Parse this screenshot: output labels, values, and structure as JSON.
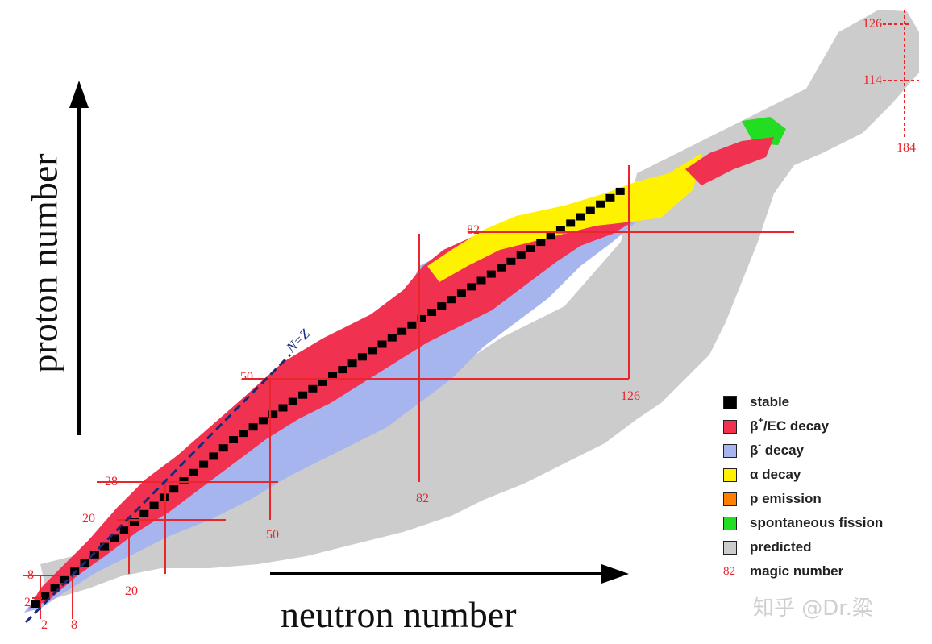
{
  "chart_data": {
    "type": "heatmap",
    "xlabel": "neutron number",
    "ylabel": "proton number",
    "nz_line_label": "N=Z",
    "magic_numbers_protons": [
      2,
      8,
      20,
      28,
      50,
      82,
      114,
      126
    ],
    "magic_numbers_neutrons": [
      2,
      8,
      20,
      28,
      50,
      82,
      126,
      184
    ],
    "magic_labels": {
      "p2": "2",
      "p8": "8",
      "p20": "20",
      "p28": "28",
      "p50": "50",
      "p82": "82",
      "p114": "114",
      "p126": "126",
      "n2": "2",
      "n8": "8",
      "n20": "20",
      "n50": "50",
      "n82": "82",
      "n126": "126",
      "n184": "184"
    },
    "legend": [
      {
        "key": "stable",
        "label": "stable",
        "color": "#000000"
      },
      {
        "key": "beta_plus",
        "label": "β+/EC decay",
        "color": "#f0314f"
      },
      {
        "key": "beta_minus",
        "label": "β- decay",
        "color": "#a6b5ee"
      },
      {
        "key": "alpha",
        "label": "α decay",
        "color": "#fff200"
      },
      {
        "key": "p_emission",
        "label": "p emission",
        "color": "#ff7f00"
      },
      {
        "key": "fission",
        "label": "spontaneous fission",
        "color": "#22dd22"
      },
      {
        "key": "predicted",
        "label": "predicted",
        "color": "#cccccc"
      },
      {
        "key": "magic",
        "label": "magic number",
        "color": "#e8262b"
      }
    ],
    "legend_text": {
      "stable": "stable",
      "beta_plus_main": "β",
      "beta_plus_sup": "+",
      "beta_plus_tail": "/EC decay",
      "beta_minus_main": "β",
      "beta_minus_sup": "-",
      "beta_minus_tail": " decay",
      "alpha": "α decay",
      "p_emission": "p emission",
      "fission": "spontaneous fission",
      "predicted": "predicted",
      "magic_sample": "82",
      "magic": "magic number"
    },
    "grid": false
  },
  "watermark": "知乎 @Dr.粱"
}
